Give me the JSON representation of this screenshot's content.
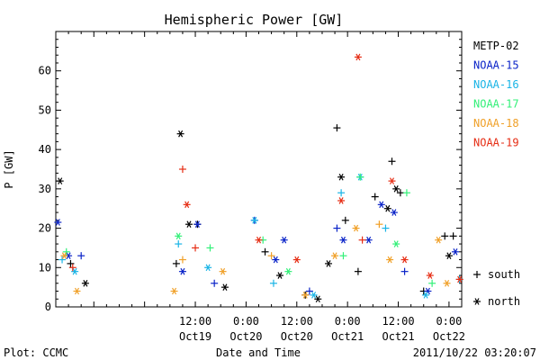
{
  "chart_data": {
    "type": "scatter",
    "title": "Hemispheric Power [GW]",
    "ylabel": "P [GW]",
    "xlabel": "Date and Time",
    "ylim": [
      0,
      70
    ],
    "yticks": [
      0,
      10,
      20,
      30,
      40,
      50,
      60
    ],
    "xlim": [
      "2011-10-18T03:00",
      "2011-10-22T03:00"
    ],
    "x_ticks": [
      {
        "time": "12:00",
        "date": "Oct19",
        "t": "2011-10-19T12:00"
      },
      {
        "time": "0:00",
        "date": "Oct20",
        "t": "2011-10-20T00:00"
      },
      {
        "time": "12:00",
        "date": "Oct20",
        "t": "2011-10-20T12:00"
      },
      {
        "time": "0:00",
        "date": "Oct21",
        "t": "2011-10-21T00:00"
      },
      {
        "time": "12:00",
        "date": "Oct21",
        "t": "2011-10-21T12:00"
      },
      {
        "time": "0:00",
        "date": "Oct22",
        "t": "2011-10-22T00:00"
      }
    ],
    "marker_legend": [
      {
        "symbol": "+",
        "label": "south"
      },
      {
        "symbol": "*",
        "label": "north"
      }
    ],
    "series": [
      {
        "name": "METP-02",
        "color": "#000000",
        "points": [
          {
            "x": "2011-10-18T04:00",
            "y": 32,
            "m": "*"
          },
          {
            "x": "2011-10-18T06:30",
            "y": 11,
            "m": "+"
          },
          {
            "x": "2011-10-18T10:00",
            "y": 6,
            "m": "*"
          },
          {
            "x": "2011-10-19T07:30",
            "y": 11,
            "m": "+"
          },
          {
            "x": "2011-10-19T08:30",
            "y": 44,
            "m": "*"
          },
          {
            "x": "2011-10-19T10:30",
            "y": 21,
            "m": "*"
          },
          {
            "x": "2011-10-19T12:30",
            "y": 21,
            "m": "+"
          },
          {
            "x": "2011-10-19T19:00",
            "y": 5,
            "m": "*"
          },
          {
            "x": "2011-10-20T04:30",
            "y": 14,
            "m": "+"
          },
          {
            "x": "2011-10-20T08:00",
            "y": 8,
            "m": "*"
          },
          {
            "x": "2011-10-20T14:00",
            "y": 3,
            "m": "+"
          },
          {
            "x": "2011-10-20T17:00",
            "y": 2,
            "m": "*"
          },
          {
            "x": "2011-10-20T19:30",
            "y": 11,
            "m": "*"
          },
          {
            "x": "2011-10-20T21:30",
            "y": 45.5,
            "m": "+"
          },
          {
            "x": "2011-10-20T22:30",
            "y": 33,
            "m": "*"
          },
          {
            "x": "2011-10-20T23:30",
            "y": 22,
            "m": "+"
          },
          {
            "x": "2011-10-21T02:30",
            "y": 9,
            "m": "+"
          },
          {
            "x": "2011-10-21T06:30",
            "y": 28,
            "m": "+"
          },
          {
            "x": "2011-10-21T09:30",
            "y": 25,
            "m": "*"
          },
          {
            "x": "2011-10-21T10:30",
            "y": 37,
            "m": "+"
          },
          {
            "x": "2011-10-21T11:30",
            "y": 30,
            "m": "*"
          },
          {
            "x": "2011-10-21T12:30",
            "y": 29,
            "m": "+"
          },
          {
            "x": "2011-10-21T18:00",
            "y": 4,
            "m": "+"
          },
          {
            "x": "2011-10-21T23:00",
            "y": 18,
            "m": "+"
          },
          {
            "x": "2011-10-22T00:00",
            "y": 13,
            "m": "*"
          },
          {
            "x": "2011-10-22T01:00",
            "y": 18,
            "m": "+"
          }
        ]
      },
      {
        "name": "NOAA-15",
        "color": "#0a23c8",
        "points": [
          {
            "x": "2011-10-18T03:30",
            "y": 21.5,
            "m": "*"
          },
          {
            "x": "2011-10-18T06:00",
            "y": 13,
            "m": "*"
          },
          {
            "x": "2011-10-18T09:00",
            "y": 13,
            "m": "+"
          },
          {
            "x": "2011-10-19T09:00",
            "y": 9,
            "m": "*"
          },
          {
            "x": "2011-10-19T12:30",
            "y": 21,
            "m": "*"
          },
          {
            "x": "2011-10-19T16:30",
            "y": 6,
            "m": "+"
          },
          {
            "x": "2011-10-20T02:00",
            "y": 22,
            "m": "+"
          },
          {
            "x": "2011-10-20T07:00",
            "y": 12,
            "m": "*"
          },
          {
            "x": "2011-10-20T09:00",
            "y": 17,
            "m": "*"
          },
          {
            "x": "2011-10-20T15:00",
            "y": 4,
            "m": "+"
          },
          {
            "x": "2011-10-20T21:30",
            "y": 20,
            "m": "+"
          },
          {
            "x": "2011-10-20T23:00",
            "y": 17,
            "m": "*"
          },
          {
            "x": "2011-10-21T05:00",
            "y": 17,
            "m": "*"
          },
          {
            "x": "2011-10-21T08:00",
            "y": 26,
            "m": "*"
          },
          {
            "x": "2011-10-21T11:00",
            "y": 24,
            "m": "*"
          },
          {
            "x": "2011-10-21T13:30",
            "y": 9,
            "m": "+"
          },
          {
            "x": "2011-10-21T19:00",
            "y": 4,
            "m": "*"
          },
          {
            "x": "2011-10-22T01:30",
            "y": 14,
            "m": "*"
          }
        ]
      },
      {
        "name": "NOAA-16",
        "color": "#19b4e6",
        "points": [
          {
            "x": "2011-10-18T04:30",
            "y": 12,
            "m": "+"
          },
          {
            "x": "2011-10-18T07:30",
            "y": 9,
            "m": "*"
          },
          {
            "x": "2011-10-19T08:00",
            "y": 16,
            "m": "+"
          },
          {
            "x": "2011-10-19T15:00",
            "y": 10,
            "m": "*"
          },
          {
            "x": "2011-10-20T02:00",
            "y": 22,
            "m": "*"
          },
          {
            "x": "2011-10-20T06:30",
            "y": 6,
            "m": "+"
          },
          {
            "x": "2011-10-20T16:00",
            "y": 3,
            "m": "*"
          },
          {
            "x": "2011-10-20T22:30",
            "y": 29,
            "m": "+"
          },
          {
            "x": "2011-10-21T03:00",
            "y": 33,
            "m": "*"
          },
          {
            "x": "2011-10-21T09:00",
            "y": 20,
            "m": "+"
          },
          {
            "x": "2011-10-21T18:30",
            "y": 3,
            "m": "*"
          },
          {
            "x": "2011-10-22T02:30",
            "y": 7,
            "m": "+"
          }
        ]
      },
      {
        "name": "NOAA-17",
        "color": "#32f078",
        "points": [
          {
            "x": "2011-10-18T05:30",
            "y": 14,
            "m": "+"
          },
          {
            "x": "2011-10-19T08:00",
            "y": 18,
            "m": "*"
          },
          {
            "x": "2011-10-19T15:30",
            "y": 15,
            "m": "+"
          },
          {
            "x": "2011-10-20T04:00",
            "y": 17,
            "m": "+"
          },
          {
            "x": "2011-10-20T10:00",
            "y": 9,
            "m": "*"
          },
          {
            "x": "2011-10-20T23:00",
            "y": 13,
            "m": "+"
          },
          {
            "x": "2011-10-21T03:00",
            "y": 33,
            "m": "+"
          },
          {
            "x": "2011-10-21T11:30",
            "y": 16,
            "m": "*"
          },
          {
            "x": "2011-10-21T14:00",
            "y": 29,
            "m": "+"
          },
          {
            "x": "2011-10-21T20:00",
            "y": 6,
            "m": "+"
          }
        ]
      },
      {
        "name": "NOAA-18",
        "color": "#f0a028",
        "points": [
          {
            "x": "2011-10-18T05:00",
            "y": 13,
            "m": "*"
          },
          {
            "x": "2011-10-18T08:00",
            "y": 4,
            "m": "*"
          },
          {
            "x": "2011-10-19T07:00",
            "y": 4,
            "m": "*"
          },
          {
            "x": "2011-10-19T09:00",
            "y": 12,
            "m": "+"
          },
          {
            "x": "2011-10-19T18:30",
            "y": 9,
            "m": "*"
          },
          {
            "x": "2011-10-20T06:00",
            "y": 13,
            "m": "+"
          },
          {
            "x": "2011-10-20T14:00",
            "y": 3,
            "m": "*"
          },
          {
            "x": "2011-10-20T21:00",
            "y": 13,
            "m": "*"
          },
          {
            "x": "2011-10-21T02:00",
            "y": 20,
            "m": "*"
          },
          {
            "x": "2011-10-21T07:30",
            "y": 21,
            "m": "+"
          },
          {
            "x": "2011-10-21T10:00",
            "y": 12,
            "m": "*"
          },
          {
            "x": "2011-10-21T21:30",
            "y": 17,
            "m": "*"
          },
          {
            "x": "2011-10-21T23:30",
            "y": 6,
            "m": "*"
          }
        ]
      },
      {
        "name": "NOAA-19",
        "color": "#e62d14",
        "points": [
          {
            "x": "2011-10-18T07:00",
            "y": 10,
            "m": "+"
          },
          {
            "x": "2011-10-19T09:00",
            "y": 35,
            "m": "+"
          },
          {
            "x": "2011-10-19T10:00",
            "y": 26,
            "m": "*"
          },
          {
            "x": "2011-10-19T12:00",
            "y": 15,
            "m": "+"
          },
          {
            "x": "2011-10-20T03:00",
            "y": 17,
            "m": "*"
          },
          {
            "x": "2011-10-20T12:00",
            "y": 12,
            "m": "*"
          },
          {
            "x": "2011-10-20T22:30",
            "y": 27,
            "m": "*"
          },
          {
            "x": "2011-10-21T02:30",
            "y": 63.5,
            "m": "*"
          },
          {
            "x": "2011-10-21T03:30",
            "y": 17,
            "m": "+"
          },
          {
            "x": "2011-10-21T10:30",
            "y": 32,
            "m": "*"
          },
          {
            "x": "2011-10-21T13:30",
            "y": 12,
            "m": "*"
          },
          {
            "x": "2011-10-21T19:30",
            "y": 8,
            "m": "*"
          },
          {
            "x": "2011-10-22T02:30",
            "y": 7,
            "m": "*"
          }
        ]
      }
    ]
  },
  "footer": {
    "plot_credit": "Plot: CCMC",
    "timestamp": "2011/10/22 03:20:07"
  }
}
